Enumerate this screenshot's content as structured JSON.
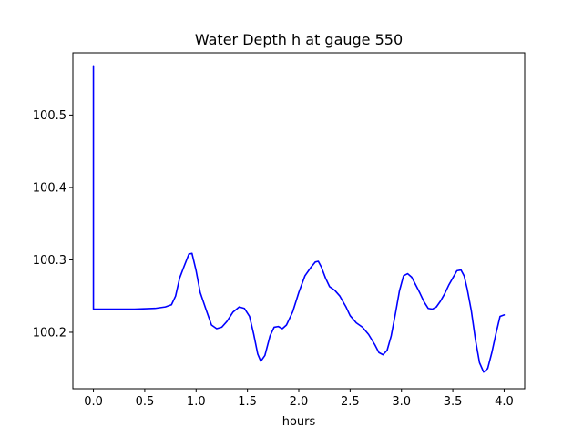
{
  "chart_data": {
    "type": "line",
    "title": "Water Depth h at gauge 550",
    "xlabel": "hours",
    "ylabel": "",
    "xlim": [
      -0.2,
      4.2
    ],
    "ylim": [
      100.122,
      100.586
    ],
    "grid": false,
    "x_ticks": [
      0.0,
      0.5,
      1.0,
      1.5,
      2.0,
      2.5,
      3.0,
      3.5,
      4.0
    ],
    "x_tick_labels": [
      "0.0",
      "0.5",
      "1.0",
      "1.5",
      "2.0",
      "2.5",
      "3.0",
      "3.5",
      "4.0"
    ],
    "y_ticks": [
      100.2,
      100.3,
      100.4,
      100.5
    ],
    "y_tick_labels": [
      "100.2",
      "100.3",
      "100.4",
      "100.5"
    ],
    "series": [
      {
        "color": "#0000ff",
        "x": [
          0.0,
          0.0,
          0.001,
          0.2,
          0.4,
          0.6,
          0.7,
          0.76,
          0.8,
          0.84,
          0.88,
          0.93,
          0.96,
          1.0,
          1.04,
          1.1,
          1.15,
          1.2,
          1.25,
          1.3,
          1.36,
          1.42,
          1.47,
          1.52,
          1.56,
          1.6,
          1.63,
          1.67,
          1.72,
          1.76,
          1.8,
          1.84,
          1.88,
          1.94,
          2.0,
          2.06,
          2.12,
          2.16,
          2.19,
          2.22,
          2.26,
          2.3,
          2.35,
          2.4,
          2.46,
          2.5,
          2.56,
          2.62,
          2.68,
          2.74,
          2.78,
          2.82,
          2.86,
          2.9,
          2.94,
          2.98,
          3.02,
          3.06,
          3.1,
          3.14,
          3.18,
          3.22,
          3.26,
          3.3,
          3.34,
          3.38,
          3.42,
          3.46,
          3.5,
          3.54,
          3.58,
          3.61,
          3.64,
          3.68,
          3.72,
          3.76,
          3.8,
          3.84,
          3.88,
          3.92,
          3.96,
          4.0
        ],
        "y": [
          100.568,
          100.232,
          100.232,
          100.232,
          100.232,
          100.233,
          100.235,
          100.238,
          100.25,
          100.275,
          100.29,
          100.308,
          100.309,
          100.285,
          100.255,
          100.23,
          100.21,
          100.205,
          100.207,
          100.215,
          100.228,
          100.235,
          100.233,
          100.222,
          100.198,
          100.17,
          100.16,
          100.168,
          100.195,
          100.207,
          100.208,
          100.205,
          100.21,
          100.228,
          100.255,
          100.278,
          100.29,
          100.297,
          100.298,
          100.29,
          100.275,
          100.263,
          100.258,
          100.25,
          100.235,
          100.223,
          100.213,
          100.207,
          100.197,
          100.183,
          100.172,
          100.169,
          100.175,
          100.195,
          100.225,
          100.257,
          100.278,
          100.281,
          100.276,
          100.265,
          100.254,
          100.242,
          100.233,
          100.232,
          100.235,
          100.243,
          100.253,
          100.265,
          100.275,
          100.285,
          100.286,
          100.278,
          100.26,
          100.23,
          100.19,
          100.158,
          100.145,
          100.15,
          100.172,
          100.198,
          100.222,
          100.224
        ]
      }
    ]
  }
}
